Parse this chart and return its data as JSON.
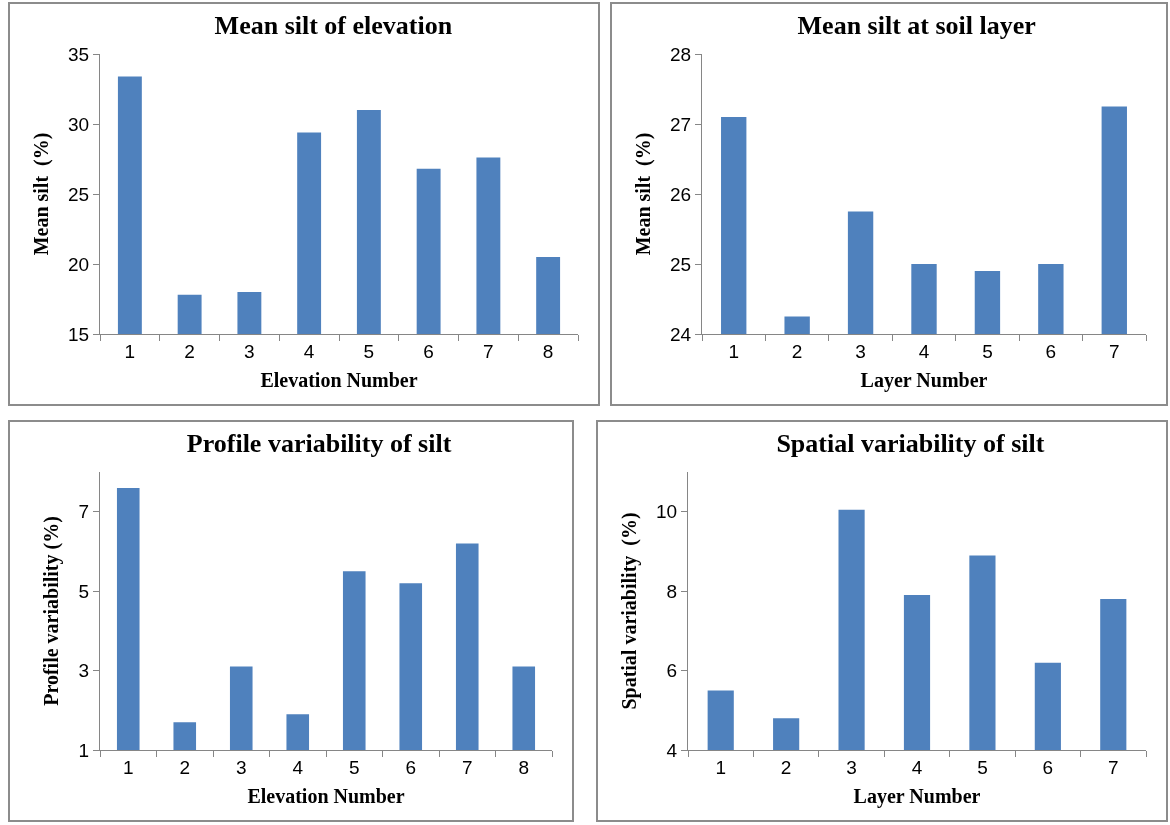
{
  "chart_data": [
    {
      "type": "bar",
      "title": "Mean silt of elevation",
      "xlabel": "Elevation Number",
      "ylabel": "Mean silt  (%)",
      "categories": [
        "1",
        "2",
        "3",
        "4",
        "5",
        "6",
        "7",
        "8"
      ],
      "values": [
        33.4,
        17.8,
        18.0,
        29.4,
        31.0,
        26.8,
        27.6,
        20.5
      ],
      "color": "#4f81bd",
      "ylim": [
        15,
        35
      ],
      "yticks": [
        15,
        20,
        25,
        30,
        35
      ]
    },
    {
      "type": "bar",
      "title": "Mean silt at soil layer",
      "xlabel": "Layer Number",
      "ylabel": "Mean silt  (%)",
      "categories": [
        "1",
        "2",
        "3",
        "4",
        "5",
        "6",
        "7"
      ],
      "values": [
        27.1,
        24.25,
        25.75,
        25.0,
        24.9,
        25.0,
        27.25
      ],
      "color": "#4f81bd",
      "ylim": [
        24,
        28
      ],
      "yticks": [
        24,
        25,
        26,
        27,
        28
      ]
    },
    {
      "type": "bar",
      "title": "Profile variability of silt",
      "xlabel": "Elevation Number",
      "ylabel": "Profile variability (%)",
      "categories": [
        "1",
        "2",
        "3",
        "4",
        "5",
        "6",
        "7",
        "8"
      ],
      "values": [
        7.6,
        1.7,
        3.1,
        1.9,
        5.5,
        5.2,
        6.2,
        3.1
      ],
      "color": "#4f81bd",
      "ylim": [
        1,
        8
      ],
      "yticks": [
        1,
        3,
        5,
        7
      ]
    },
    {
      "type": "bar",
      "title": "Spatial variability of silt",
      "xlabel": "Layer Number",
      "ylabel": "Spatial variability  (%)",
      "categories": [
        "1",
        "2",
        "3",
        "4",
        "5",
        "6",
        "7"
      ],
      "values": [
        5.5,
        4.8,
        10.05,
        7.9,
        8.9,
        6.2,
        7.8
      ],
      "color": "#4f81bd",
      "ylim": [
        4,
        11
      ],
      "yticks": [
        4,
        6,
        8,
        10
      ]
    }
  ]
}
